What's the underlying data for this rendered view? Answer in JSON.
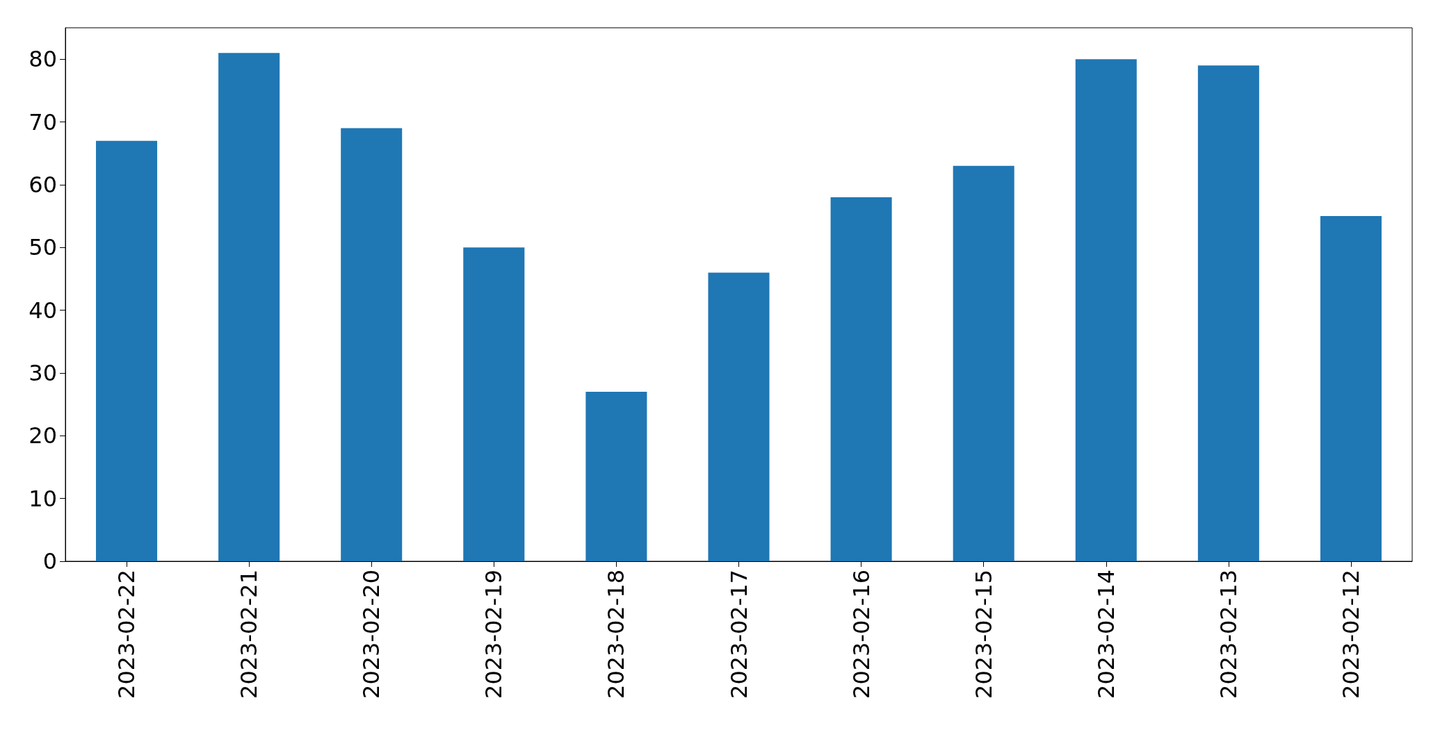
{
  "chart_data": {
    "type": "bar",
    "categories": [
      "2023-02-22",
      "2023-02-21",
      "2023-02-20",
      "2023-02-19",
      "2023-02-18",
      "2023-02-17",
      "2023-02-16",
      "2023-02-15",
      "2023-02-14",
      "2023-02-13",
      "2023-02-12"
    ],
    "values": [
      67,
      81,
      69,
      50,
      27,
      46,
      58,
      63,
      80,
      79,
      55
    ],
    "color": "#1f77b4",
    "ylim": [
      0,
      85
    ],
    "yticks": [
      0,
      10,
      20,
      30,
      40,
      50,
      60,
      70,
      80
    ]
  }
}
